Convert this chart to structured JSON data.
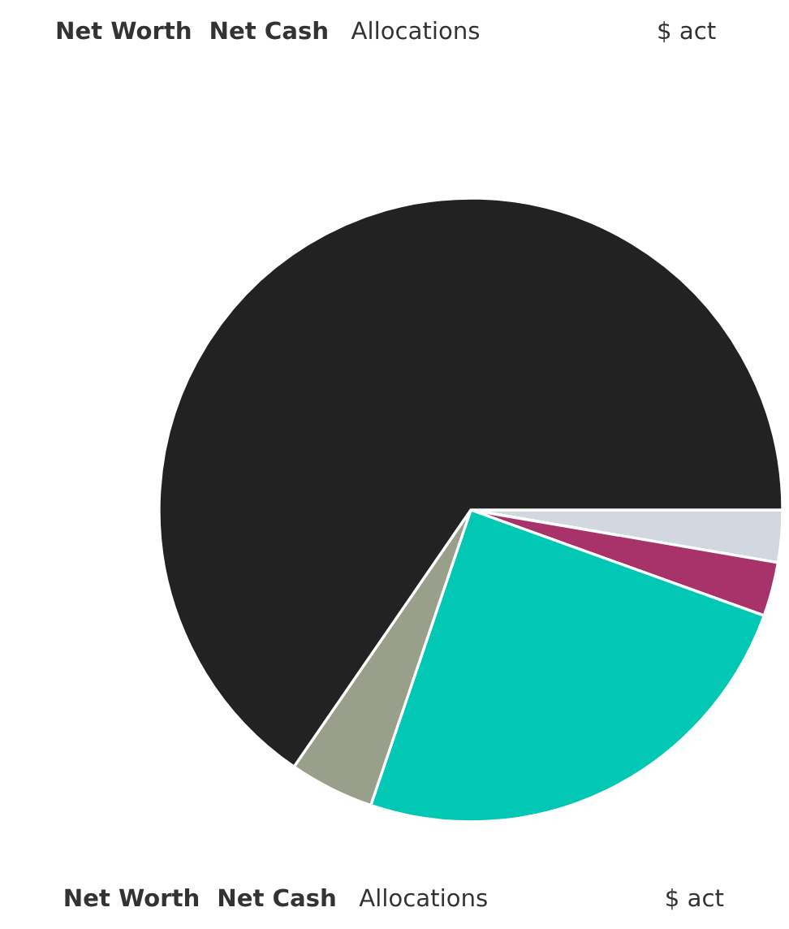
{
  "chart_data": {
    "type": "pie",
    "categories": [
      null,
      null,
      null,
      null,
      null
    ],
    "values": [
      2.7,
      2.8,
      24.7,
      4.4,
      65.4
    ],
    "colors": [
      "#d3d8e0",
      "#a8326a",
      "#00c8b4",
      "#9a9f8c",
      "#222222"
    ],
    "annotations": [
      "Net Worth",
      "Net Cash",
      "Allocations",
      "$ act",
      "Net Worth",
      "Net Cash",
      "Allocations",
      "$ act"
    ]
  }
}
